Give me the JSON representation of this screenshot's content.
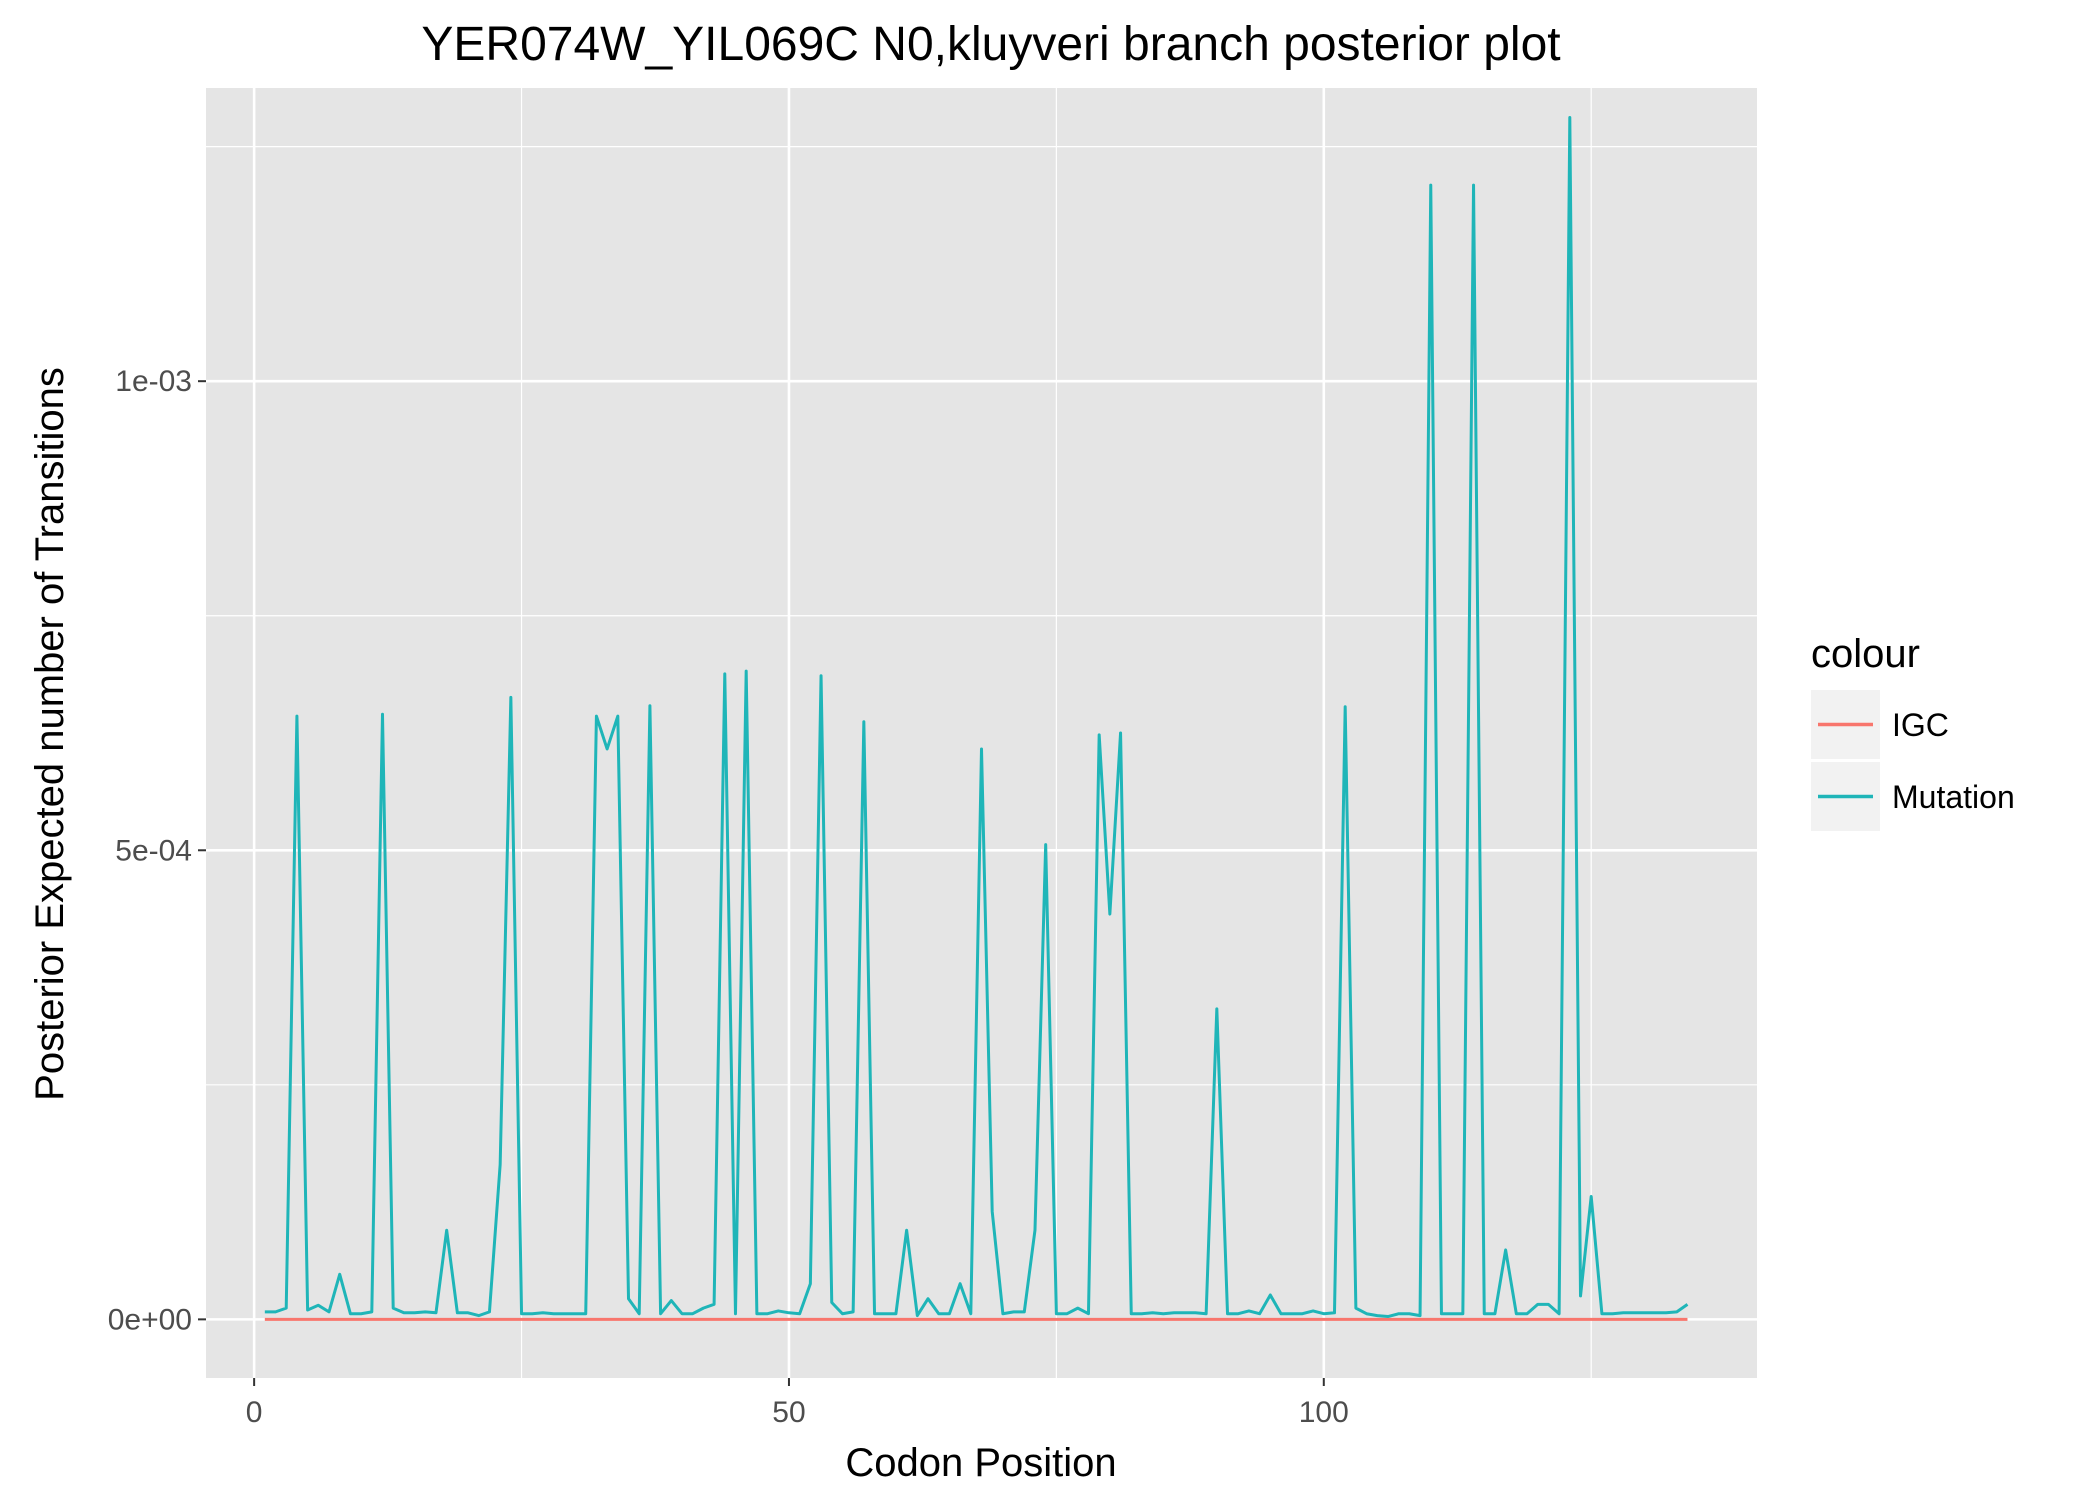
{
  "chart_data": {
    "type": "line",
    "title": "YER074W_YIL069C N0,kluyveri branch posterior plot",
    "xlabel": "Codon Position",
    "ylabel": "Posterior Expected number of Transitions",
    "xlim": [
      -4.5,
      140.5
    ],
    "ylim": [
      -6.25e-05,
      0.0013125
    ],
    "x_ticks": [
      0,
      50,
      100
    ],
    "x_tick_labels": [
      "0",
      "50",
      "100"
    ],
    "y_ticks": [
      0,
      0.0005,
      0.001
    ],
    "y_tick_labels": [
      "0e+00",
      "5e-04",
      "1e-03"
    ],
    "x_minor_ticks": [
      25,
      75,
      125
    ],
    "y_minor_ticks": [
      0.00025,
      0.00075,
      0.00125
    ],
    "grid": true,
    "panel_background": "#e5e5e5",
    "grid_color": "#ffffff",
    "legend": {
      "title": "colour",
      "position": "right"
    },
    "series": [
      {
        "name": "IGC",
        "color": "#f8766d",
        "x": [
          1,
          134
        ],
        "y": [
          0,
          0
        ]
      },
      {
        "name": "Mutation",
        "color": "#1fb5b8",
        "x": [
          1,
          2,
          3,
          4,
          5,
          6,
          7,
          8,
          9,
          10,
          11,
          12,
          13,
          14,
          15,
          16,
          17,
          18,
          19,
          20,
          21,
          22,
          23,
          24,
          25,
          26,
          27,
          28,
          29,
          30,
          31,
          32,
          33,
          34,
          35,
          36,
          37,
          38,
          39,
          40,
          41,
          42,
          43,
          44,
          45,
          46,
          47,
          48,
          49,
          50,
          51,
          52,
          53,
          54,
          55,
          56,
          57,
          58,
          59,
          60,
          61,
          62,
          63,
          64,
          65,
          66,
          67,
          68,
          69,
          70,
          71,
          72,
          73,
          74,
          75,
          76,
          77,
          78,
          79,
          80,
          81,
          82,
          83,
          84,
          85,
          86,
          87,
          88,
          89,
          90,
          91,
          92,
          93,
          94,
          95,
          96,
          97,
          98,
          99,
          100,
          101,
          102,
          103,
          104,
          105,
          106,
          107,
          108,
          109,
          110,
          111,
          112,
          113,
          114,
          115,
          116,
          117,
          118,
          119,
          120,
          121,
          122,
          123,
          124,
          125,
          126,
          127,
          128,
          129,
          130,
          131,
          132,
          133,
          134
        ],
        "y": [
          8e-06,
          8e-06,
          1.2e-05,
          0.000643,
          1e-05,
          1.5e-05,
          8e-06,
          4.8e-05,
          6e-06,
          6e-06,
          8e-06,
          0.000645,
          1.2e-05,
          7e-06,
          7e-06,
          8e-06,
          7e-06,
          9.5e-05,
          7e-06,
          7e-06,
          4e-06,
          8e-06,
          0.000165,
          0.000663,
          6e-06,
          6e-06,
          7e-06,
          6e-06,
          6e-06,
          6e-06,
          6e-06,
          0.000643,
          0.000608,
          0.000643,
          2.2e-05,
          6e-06,
          0.000654,
          6e-06,
          2e-05,
          6e-06,
          6e-06,
          1.2e-05,
          1.6e-05,
          0.000688,
          6e-06,
          0.000691,
          6e-06,
          6e-06,
          9e-06,
          7e-06,
          6e-06,
          3.8e-05,
          0.000686,
          1.8e-05,
          6e-06,
          8e-06,
          0.000637,
          6e-06,
          6e-06,
          6e-06,
          9.5e-05,
          4e-06,
          2.2e-05,
          6e-06,
          6e-06,
          3.8e-05,
          6e-06,
          0.000608,
          0.000115,
          6e-06,
          8e-06,
          8e-06,
          9.5e-05,
          0.000506,
          6e-06,
          6e-06,
          1.2e-05,
          6e-06,
          0.000623,
          0.000432,
          0.000625,
          6e-06,
          6e-06,
          7e-06,
          6e-06,
          7e-06,
          7e-06,
          7e-06,
          6e-06,
          0.000331,
          6e-06,
          6e-06,
          9e-06,
          6e-06,
          2.6e-05,
          6e-06,
          6e-06,
          6e-06,
          9e-06,
          6e-06,
          7e-06,
          0.000653,
          1.2e-05,
          6e-06,
          4e-06,
          3e-06,
          6e-06,
          6e-06,
          4e-06,
          0.001209,
          6e-06,
          6e-06,
          6e-06,
          0.001209,
          6e-06,
          6e-06,
          7.4e-05,
          6e-06,
          6e-06,
          1.6e-05,
          1.6e-05,
          6e-06,
          0.001281,
          2.5e-05,
          0.000131,
          6e-06,
          6e-06,
          7e-06,
          7e-06,
          7e-06,
          7e-06,
          7e-06,
          8e-06,
          1.6e-05
        ]
      }
    ]
  }
}
